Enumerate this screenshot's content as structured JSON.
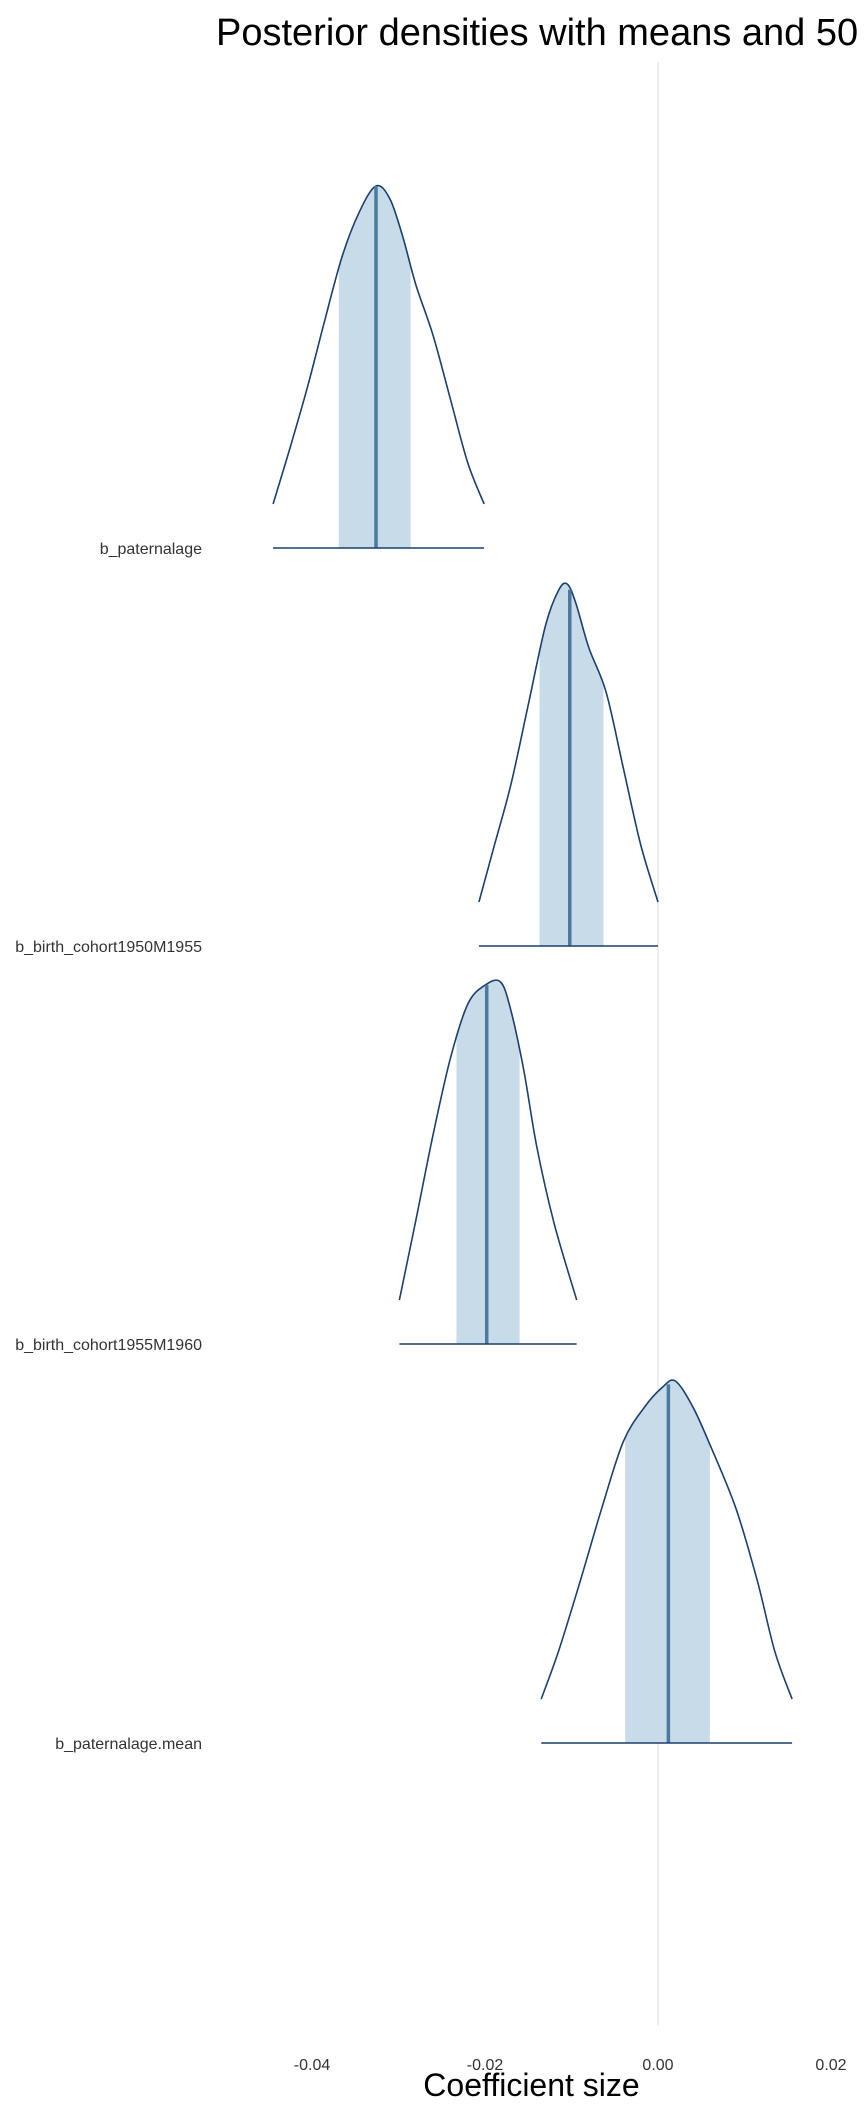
{
  "chart_data": {
    "type": "density",
    "title": "Posterior densities with means and 50",
    "xlabel": "Coefficient size",
    "ylabel": "",
    "xlim": [
      -0.04,
      0.02
    ],
    "x_ticks": [
      -0.04,
      -0.02,
      0.0,
      0.02
    ],
    "x_tick_labels": [
      "-0.04",
      "-0.02",
      "0.00",
      "0.02"
    ],
    "reference_line": 0.0,
    "grid": false,
    "colors": {
      "outline": "#1b3f6e",
      "interval_fill": "#c7dbe8",
      "mean_line": "#4a7aa0",
      "reference": "#d9d9d9"
    },
    "series": [
      {
        "name": "b_paternalage",
        "mean": -0.0326,
        "interval_50": [
          -0.0369,
          -0.0286
        ],
        "range": [
          -0.0445,
          -0.0201
        ],
        "density": [
          [
            -0.0445,
            0.0
          ],
          [
            -0.0425,
            0.18
          ],
          [
            -0.0405,
            0.37
          ],
          [
            -0.0385,
            0.58
          ],
          [
            -0.0365,
            0.78
          ],
          [
            -0.0345,
            0.92
          ],
          [
            -0.0326,
            1.0
          ],
          [
            -0.031,
            0.96
          ],
          [
            -0.0295,
            0.84
          ],
          [
            -0.028,
            0.69
          ],
          [
            -0.026,
            0.53
          ],
          [
            -0.024,
            0.33
          ],
          [
            -0.022,
            0.13
          ],
          [
            -0.0201,
            0.0
          ]
        ]
      },
      {
        "name": "b_birth_cohort1950M1955",
        "mean": -0.0102,
        "interval_50": [
          -0.0137,
          -0.0063
        ],
        "range": [
          -0.0207,
          0.0
        ],
        "density": [
          [
            -0.0207,
            0.0
          ],
          [
            -0.019,
            0.17
          ],
          [
            -0.017,
            0.37
          ],
          [
            -0.015,
            0.62
          ],
          [
            -0.013,
            0.87
          ],
          [
            -0.0115,
            0.98
          ],
          [
            -0.0105,
            1.0
          ],
          [
            -0.0095,
            0.94
          ],
          [
            -0.008,
            0.8
          ],
          [
            -0.006,
            0.66
          ],
          [
            -0.004,
            0.42
          ],
          [
            -0.002,
            0.18
          ],
          [
            0.0,
            0.0
          ]
        ]
      },
      {
        "name": "b_birth_cohort1955M1960",
        "mean": -0.0198,
        "interval_50": [
          -0.0233,
          -0.016
        ],
        "range": [
          -0.0299,
          -0.0094
        ],
        "density": [
          [
            -0.0299,
            0.0
          ],
          [
            -0.028,
            0.25
          ],
          [
            -0.026,
            0.52
          ],
          [
            -0.024,
            0.76
          ],
          [
            -0.022,
            0.93
          ],
          [
            -0.02,
            0.99
          ],
          [
            -0.0182,
            1.0
          ],
          [
            -0.017,
            0.91
          ],
          [
            -0.0155,
            0.72
          ],
          [
            -0.014,
            0.48
          ],
          [
            -0.012,
            0.24
          ],
          [
            -0.0094,
            0.0
          ]
        ]
      },
      {
        "name": "b_paternalage.mean",
        "mean": 0.0012,
        "interval_50": [
          -0.0038,
          0.006
        ],
        "range": [
          -0.0135,
          0.0155
        ],
        "density": [
          [
            -0.0135,
            0.0
          ],
          [
            -0.0115,
            0.15
          ],
          [
            -0.009,
            0.37
          ],
          [
            -0.0065,
            0.6
          ],
          [
            -0.004,
            0.81
          ],
          [
            -0.0015,
            0.92
          ],
          [
            0.0005,
            0.98
          ],
          [
            0.002,
            1.0
          ],
          [
            0.004,
            0.92
          ],
          [
            0.006,
            0.8
          ],
          [
            0.009,
            0.6
          ],
          [
            0.0115,
            0.37
          ],
          [
            0.0135,
            0.15
          ],
          [
            0.0155,
            0.0
          ]
        ]
      }
    ]
  }
}
